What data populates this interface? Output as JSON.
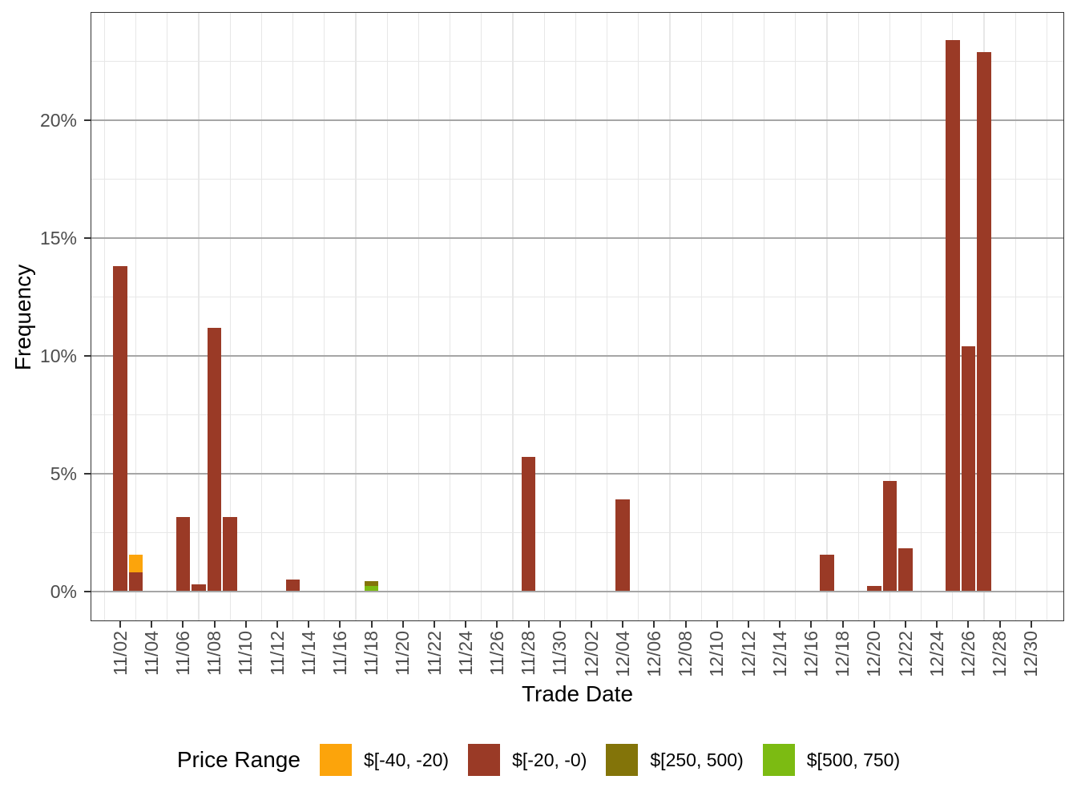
{
  "style": {
    "background": "#ffffff",
    "panel_border_color": "#333333",
    "grid_major_color": "#a6a6a6",
    "grid_minor_color": "#e7e7e7",
    "tick_color": "#333333",
    "tick_label_color": "#4d4d4d",
    "axis_title_color": "#000000"
  },
  "chart_data": {
    "type": "bar",
    "stacked": true,
    "title": "",
    "xlabel": "Trade Date",
    "ylabel": "Frequency",
    "grid": "on",
    "legend_position": "bottom",
    "x_axis": {
      "tick_labels": [
        "11/02",
        "11/04",
        "11/06",
        "11/08",
        "11/10",
        "11/12",
        "11/14",
        "11/16",
        "11/18",
        "11/20",
        "11/22",
        "11/24",
        "11/26",
        "11/28",
        "11/30",
        "12/02",
        "12/04",
        "12/06",
        "12/08",
        "12/10",
        "12/12",
        "12/14",
        "12/16",
        "12/18",
        "12/20",
        "12/22",
        "12/24",
        "12/26",
        "12/28",
        "12/30"
      ],
      "tick_day_indices": [
        0,
        2,
        4,
        6,
        8,
        10,
        12,
        14,
        16,
        18,
        20,
        22,
        24,
        26,
        28,
        30,
        32,
        34,
        36,
        38,
        40,
        42,
        44,
        46,
        48,
        50,
        52,
        54,
        56,
        58
      ],
      "minor_day_indices": [
        -1,
        1,
        3,
        5,
        7,
        9,
        11,
        13,
        15,
        17,
        19,
        21,
        23,
        25,
        27,
        29,
        31,
        33,
        35,
        37,
        39,
        41,
        43,
        45,
        47,
        49,
        51,
        53,
        55,
        57,
        59
      ]
    },
    "y_axis": {
      "tick_labels": [
        "0%",
        "5%",
        "10%",
        "15%",
        "20%"
      ],
      "tick_values": [
        0,
        5,
        10,
        15,
        20
      ],
      "minor_values": [
        2.5,
        7.5,
        12.5,
        17.5,
        22.5
      ],
      "ylim": [
        -1.26,
        24.6
      ],
      "unit": "percent"
    },
    "legend": {
      "title": "Price Range",
      "entries": [
        {
          "label": "$[-40, -20)",
          "color": "#fca40b"
        },
        {
          "label": "$[-20, -0)",
          "color": "#9a3a26"
        },
        {
          "label": "$[250, 500)",
          "color": "#837409"
        },
        {
          "label": "$[500, 750)",
          "color": "#7cbb12"
        }
      ]
    },
    "bars": [
      {
        "date": "11/02",
        "day_index": 0,
        "segments": [
          {
            "range": "$[-20, -0)",
            "value": 13.8
          }
        ]
      },
      {
        "date": "11/03",
        "day_index": 1,
        "segments": [
          {
            "range": "$[-20, -0)",
            "value": 0.8
          },
          {
            "range": "$[-40, -20)",
            "value": 0.75
          }
        ]
      },
      {
        "date": "11/06",
        "day_index": 4,
        "segments": [
          {
            "range": "$[-20, -0)",
            "value": 3.15
          }
        ]
      },
      {
        "date": "11/07",
        "day_index": 5,
        "segments": [
          {
            "range": "$[-20, -0)",
            "value": 0.3
          }
        ]
      },
      {
        "date": "11/08",
        "day_index": 6,
        "segments": [
          {
            "range": "$[-20, -0)",
            "value": 11.2
          }
        ]
      },
      {
        "date": "11/09",
        "day_index": 7,
        "segments": [
          {
            "range": "$[-20, -0)",
            "value": 3.15
          }
        ]
      },
      {
        "date": "11/13",
        "day_index": 11,
        "segments": [
          {
            "range": "$[-20, -0)",
            "value": 0.5
          }
        ]
      },
      {
        "date": "11/18",
        "day_index": 16,
        "segments": [
          {
            "range": "$[500, 750)",
            "value": 0.25
          },
          {
            "range": "$[250, 500)",
            "value": 0.2
          }
        ]
      },
      {
        "date": "11/28",
        "day_index": 26,
        "segments": [
          {
            "range": "$[-20, -0)",
            "value": 5.7
          }
        ]
      },
      {
        "date": "12/04",
        "day_index": 32,
        "segments": [
          {
            "range": "$[-20, -0)",
            "value": 3.9
          }
        ]
      },
      {
        "date": "12/17",
        "day_index": 45,
        "segments": [
          {
            "range": "$[-20, -0)",
            "value": 1.55
          }
        ]
      },
      {
        "date": "12/20",
        "day_index": 48,
        "segments": [
          {
            "range": "$[-20, -0)",
            "value": 0.25
          }
        ]
      },
      {
        "date": "12/21",
        "day_index": 49,
        "segments": [
          {
            "range": "$[-20, -0)",
            "value": 4.7
          }
        ]
      },
      {
        "date": "12/22",
        "day_index": 50,
        "segments": [
          {
            "range": "$[-20, -0)",
            "value": 1.85
          }
        ]
      },
      {
        "date": "12/25",
        "day_index": 53,
        "segments": [
          {
            "range": "$[-20, -0)",
            "value": 23.4
          }
        ]
      },
      {
        "date": "12/26",
        "day_index": 54,
        "segments": [
          {
            "range": "$[-20, -0)",
            "value": 10.4
          }
        ]
      },
      {
        "date": "12/27",
        "day_index": 55,
        "segments": [
          {
            "range": "$[-20, -0)",
            "value": 22.9
          }
        ]
      }
    ]
  }
}
